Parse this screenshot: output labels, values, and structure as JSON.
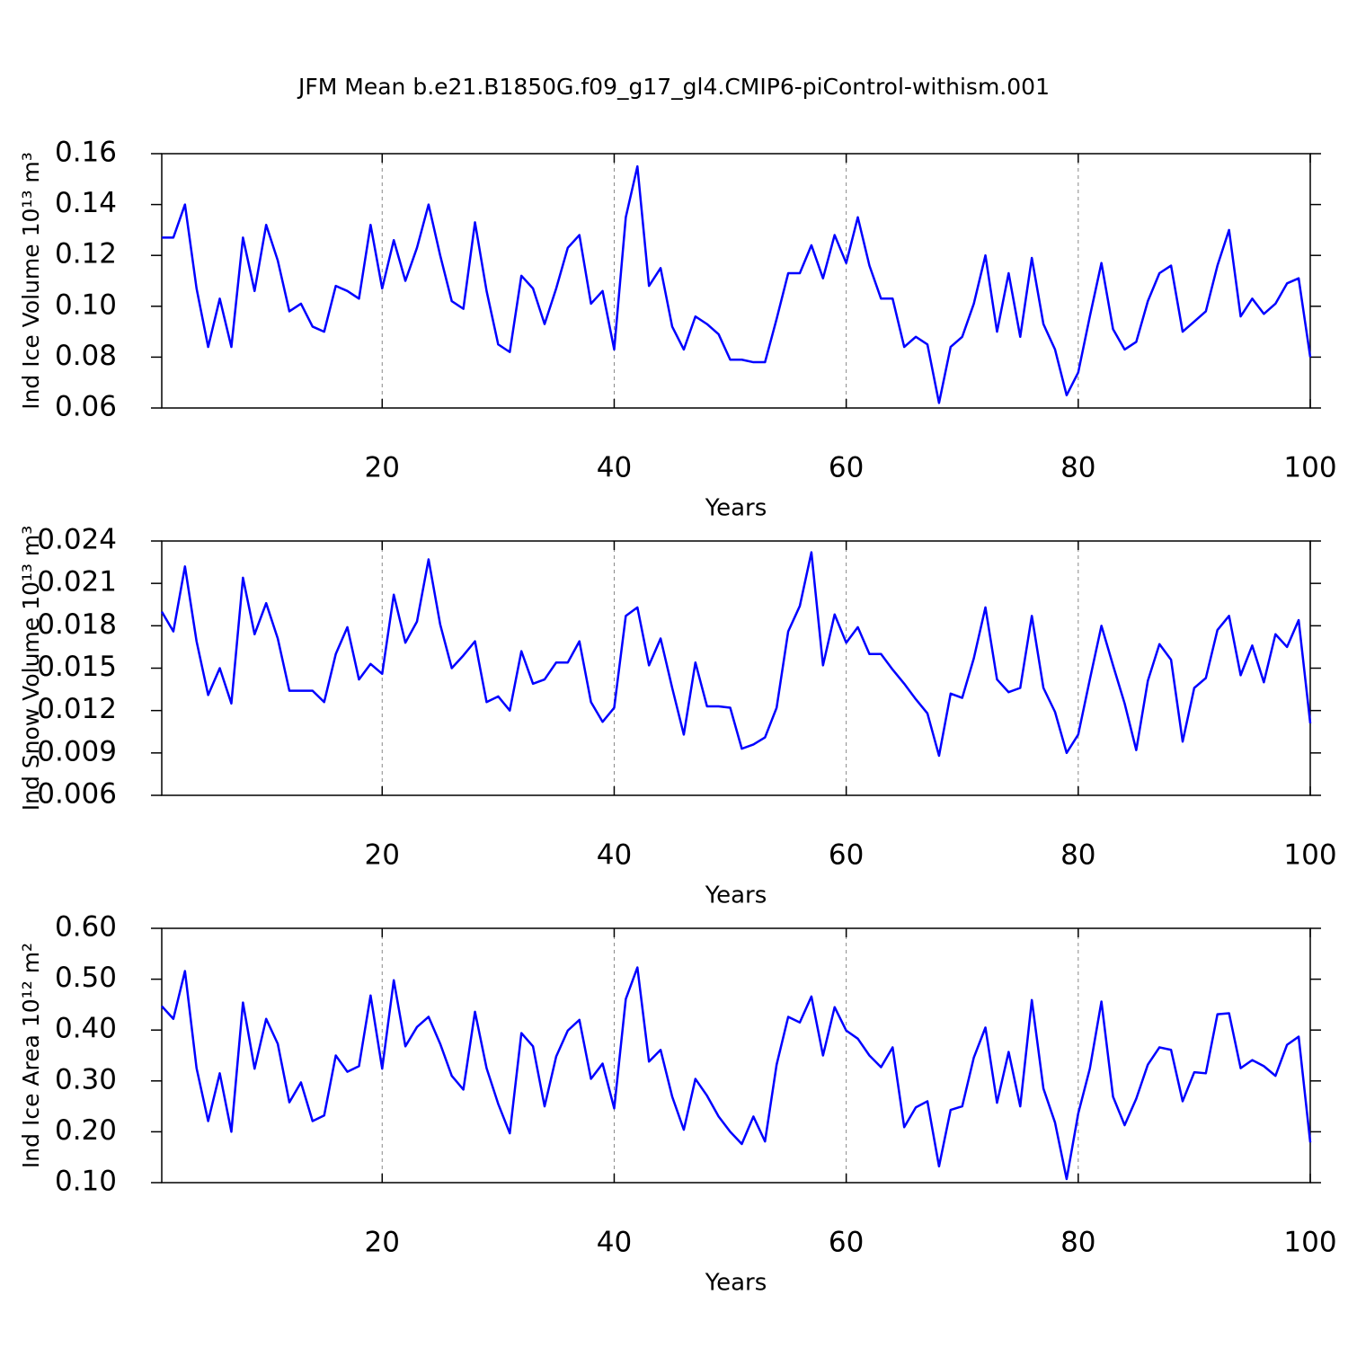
{
  "title": "JFM Mean b.e21.B1850G.f09_g17_gl4.CMIP6-piControl-withism.001",
  "chart_data": [
    {
      "type": "line",
      "ylabel": "Ind Ice Volume 10¹³ m³",
      "xlabel": "Years",
      "x": [
        1,
        2,
        3,
        4,
        5,
        6,
        7,
        8,
        9,
        10,
        11,
        12,
        13,
        14,
        15,
        16,
        17,
        18,
        19,
        20,
        21,
        22,
        23,
        24,
        25,
        26,
        27,
        28,
        29,
        30,
        31,
        32,
        33,
        34,
        35,
        36,
        37,
        38,
        39,
        40,
        41,
        42,
        43,
        44,
        45,
        46,
        47,
        48,
        49,
        50,
        51,
        52,
        53,
        54,
        55,
        56,
        57,
        58,
        59,
        60,
        61,
        62,
        63,
        64,
        65,
        66,
        67,
        68,
        69,
        70,
        71,
        72,
        73,
        74,
        75,
        76,
        77,
        78,
        79,
        80,
        81,
        82,
        83,
        84,
        85,
        86,
        87,
        88,
        89,
        90,
        91,
        92,
        93,
        94,
        95,
        96,
        97,
        98,
        99,
        100
      ],
      "series": [
        {
          "color": "#0000ff",
          "values": [
            0.127,
            0.127,
            0.14,
            0.107,
            0.084,
            0.103,
            0.084,
            0.127,
            0.106,
            0.132,
            0.118,
            0.098,
            0.101,
            0.092,
            0.09,
            0.108,
            0.106,
            0.103,
            0.132,
            0.107,
            0.126,
            0.11,
            0.123,
            0.14,
            0.12,
            0.102,
            0.099,
            0.133,
            0.106,
            0.085,
            0.082,
            0.112,
            0.107,
            0.093,
            0.107,
            0.123,
            0.128,
            0.101,
            0.106,
            0.083,
            0.135,
            0.155,
            0.108,
            0.115,
            0.092,
            0.083,
            0.096,
            0.093,
            0.089,
            0.079,
            0.079,
            0.078,
            0.078,
            0.095,
            0.113,
            0.113,
            0.124,
            0.111,
            0.128,
            0.117,
            0.135,
            0.116,
            0.103,
            0.103,
            0.084,
            0.088,
            0.085,
            0.062,
            0.084,
            0.088,
            0.101,
            0.12,
            0.09,
            0.113,
            0.088,
            0.119,
            0.093,
            0.083,
            0.065,
            0.074,
            0.096,
            0.117,
            0.091,
            0.083,
            0.086,
            0.102,
            0.113,
            0.116,
            0.09,
            0.094,
            0.098,
            0.116,
            0.13,
            0.096,
            0.103,
            0.097,
            0.101,
            0.109,
            0.111,
            0.08
          ]
        }
      ],
      "xlim": [
        1,
        100
      ],
      "xticks": [
        20,
        40,
        60,
        80,
        100
      ],
      "ylim": [
        0.06,
        0.16
      ],
      "yticks": [
        0.06,
        0.08,
        {
          "value": 0.1,
          "label": "0.10"
        },
        0.12,
        0.14,
        0.16
      ],
      "xgrid": true
    },
    {
      "type": "line",
      "ylabel": "Ind Snow Volume 10¹³ m³",
      "xlabel": "Years",
      "x": [
        1,
        2,
        3,
        4,
        5,
        6,
        7,
        8,
        9,
        10,
        11,
        12,
        13,
        14,
        15,
        16,
        17,
        18,
        19,
        20,
        21,
        22,
        23,
        24,
        25,
        26,
        27,
        28,
        29,
        30,
        31,
        32,
        33,
        34,
        35,
        36,
        37,
        38,
        39,
        40,
        41,
        42,
        43,
        44,
        45,
        46,
        47,
        48,
        49,
        50,
        51,
        52,
        53,
        54,
        55,
        56,
        57,
        58,
        59,
        60,
        61,
        62,
        63,
        64,
        65,
        66,
        67,
        68,
        69,
        70,
        71,
        72,
        73,
        74,
        75,
        76,
        77,
        78,
        79,
        80,
        81,
        82,
        83,
        84,
        85,
        86,
        87,
        88,
        89,
        90,
        91,
        92,
        93,
        94,
        95,
        96,
        97,
        98,
        99,
        100
      ],
      "series": [
        {
          "color": "#0000ff",
          "values": [
            0.019,
            0.0176,
            0.0222,
            0.0169,
            0.0131,
            0.015,
            0.0125,
            0.0214,
            0.0174,
            0.0196,
            0.0171,
            0.0134,
            0.0134,
            0.0134,
            0.0126,
            0.016,
            0.0179,
            0.0142,
            0.0153,
            0.0146,
            0.0202,
            0.0168,
            0.0183,
            0.0227,
            0.0181,
            0.015,
            0.0159,
            0.0169,
            0.0126,
            0.013,
            0.012,
            0.0162,
            0.0139,
            0.0142,
            0.0154,
            0.0154,
            0.0169,
            0.0126,
            0.0112,
            0.0122,
            0.0187,
            0.0193,
            0.0152,
            0.0171,
            0.0136,
            0.0103,
            0.0154,
            0.0123,
            0.0123,
            0.0122,
            0.0093,
            0.0096,
            0.0101,
            0.0122,
            0.0176,
            0.0194,
            0.0232,
            0.0152,
            0.0188,
            0.0168,
            0.0179,
            0.016,
            0.016,
            0.0149,
            0.0139,
            0.0128,
            0.0118,
            0.0088,
            0.0132,
            0.0129,
            0.0157,
            0.0193,
            0.0142,
            0.0133,
            0.0136,
            0.0187,
            0.0136,
            0.0119,
            0.009,
            0.0103,
            0.0142,
            0.018,
            0.0152,
            0.0125,
            0.0092,
            0.0141,
            0.0167,
            0.0156,
            0.0098,
            0.0136,
            0.0143,
            0.0177,
            0.0187,
            0.0145,
            0.0166,
            0.014,
            0.0174,
            0.0165,
            0.0184,
            0.0111
          ]
        }
      ],
      "xlim": [
        1,
        100
      ],
      "xticks": [
        20,
        40,
        60,
        80,
        100
      ],
      "ylim": [
        0.006,
        0.024
      ],
      "yticks": [
        0.006,
        0.009,
        0.012,
        0.015,
        0.018,
        0.021,
        0.024
      ],
      "xgrid": true
    },
    {
      "type": "line",
      "ylabel": "Ind Ice Area 10¹² m²",
      "xlabel": "Years",
      "x": [
        1,
        2,
        3,
        4,
        5,
        6,
        7,
        8,
        9,
        10,
        11,
        12,
        13,
        14,
        15,
        16,
        17,
        18,
        19,
        20,
        21,
        22,
        23,
        24,
        25,
        26,
        27,
        28,
        29,
        30,
        31,
        32,
        33,
        34,
        35,
        36,
        37,
        38,
        39,
        40,
        41,
        42,
        43,
        44,
        45,
        46,
        47,
        48,
        49,
        50,
        51,
        52,
        53,
        54,
        55,
        56,
        57,
        58,
        59,
        60,
        61,
        62,
        63,
        64,
        65,
        66,
        67,
        68,
        69,
        70,
        71,
        72,
        73,
        74,
        75,
        76,
        77,
        78,
        79,
        80,
        81,
        82,
        83,
        84,
        85,
        86,
        87,
        88,
        89,
        90,
        91,
        92,
        93,
        94,
        95,
        96,
        97,
        98,
        99,
        100
      ],
      "series": [
        {
          "color": "#0000ff",
          "values": [
            0.447,
            0.422,
            0.516,
            0.325,
            0.221,
            0.315,
            0.2,
            0.454,
            0.324,
            0.422,
            0.373,
            0.258,
            0.297,
            0.221,
            0.232,
            0.35,
            0.318,
            0.329,
            0.468,
            0.324,
            0.498,
            0.368,
            0.406,
            0.426,
            0.373,
            0.31,
            0.283,
            0.436,
            0.325,
            0.255,
            0.197,
            0.394,
            0.368,
            0.25,
            0.348,
            0.399,
            0.42,
            0.304,
            0.334,
            0.246,
            0.461,
            0.523,
            0.338,
            0.361,
            0.269,
            0.204,
            0.304,
            0.271,
            0.23,
            0.2,
            0.176,
            0.23,
            0.181,
            0.332,
            0.426,
            0.415,
            0.466,
            0.35,
            0.445,
            0.399,
            0.383,
            0.35,
            0.327,
            0.366,
            0.209,
            0.248,
            0.26,
            0.132,
            0.243,
            0.25,
            0.346,
            0.405,
            0.257,
            0.357,
            0.25,
            0.459,
            0.285,
            0.218,
            0.107,
            0.236,
            0.324,
            0.456,
            0.269,
            0.213,
            0.265,
            0.332,
            0.366,
            0.361,
            0.26,
            0.317,
            0.315,
            0.431,
            0.433,
            0.325,
            0.341,
            0.329,
            0.31,
            0.371,
            0.387,
            0.179
          ]
        }
      ],
      "xlim": [
        1,
        100
      ],
      "xticks": [
        20,
        40,
        60,
        80,
        100
      ],
      "ylim": [
        0.1,
        0.6
      ],
      "yticks": [
        {
          "value": 0.1,
          "label": "0.10"
        },
        {
          "value": 0.2,
          "label": "0.20"
        },
        {
          "value": 0.3,
          "label": "0.30"
        },
        {
          "value": 0.4,
          "label": "0.40"
        },
        {
          "value": 0.5,
          "label": "0.50"
        },
        {
          "value": 0.6,
          "label": "0.60"
        }
      ],
      "xgrid": true
    }
  ]
}
